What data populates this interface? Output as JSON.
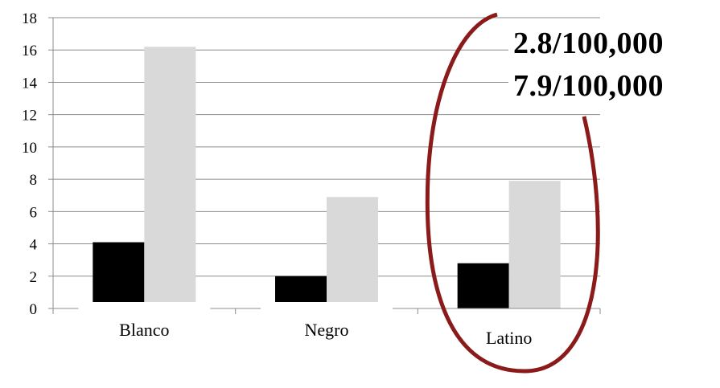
{
  "chart_data": {
    "type": "bar",
    "categories": [
      "Blanco",
      "Negro",
      "Latino"
    ],
    "series": [
      {
        "values": [
          4.1,
          2.0,
          2.8
        ],
        "color": "#000000"
      },
      {
        "values": [
          16.2,
          6.9,
          7.9
        ],
        "color": "#d9d9d9"
      }
    ],
    "ylim": [
      0,
      18
    ],
    "yticks": [
      0,
      2,
      4,
      6,
      8,
      10,
      12,
      14,
      16,
      18
    ],
    "grid": true,
    "xlabel": "",
    "ylabel": "",
    "title": ""
  },
  "annotation": {
    "highlight_category": "Latino",
    "ellipse_color": "#8b1a1a",
    "lines": [
      "2.8/100,000",
      "7.9/100,000"
    ]
  }
}
